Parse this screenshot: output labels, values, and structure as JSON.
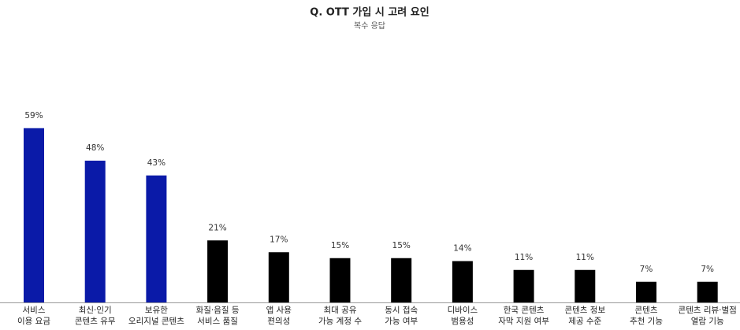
{
  "chart_data": {
    "type": "bar",
    "title": "Q. OTT 가입 시 고려 요인",
    "subtitle": "복수 응답",
    "categories": [
      [
        "서비스",
        "이용 요금"
      ],
      [
        "최신·인기",
        "콘텐츠 유무"
      ],
      [
        "보유한",
        "오리지널 콘텐츠"
      ],
      [
        "화질·음질 등",
        "서비스 품질"
      ],
      [
        "앱 사용",
        "편의성"
      ],
      [
        "최대 공유",
        "가능 계정 수"
      ],
      [
        "동시 접속",
        "가능 여부"
      ],
      [
        "디바이스",
        "범용성"
      ],
      [
        "한국 콘텐츠",
        "자막 지원 여부"
      ],
      [
        "콘텐츠 정보",
        "제공 수준"
      ],
      [
        "콘텐츠",
        "추천 기능"
      ],
      [
        "콘텐츠 리뷰·별점",
        "열람 기능"
      ]
    ],
    "values": [
      59,
      48,
      43,
      21,
      17,
      15,
      15,
      14,
      11,
      11,
      7,
      7
    ],
    "value_labels": [
      "59%",
      "48%",
      "43%",
      "21%",
      "17%",
      "15%",
      "15%",
      "14%",
      "11%",
      "11%",
      "7%",
      "7%"
    ],
    "colors": [
      "#0a1aa8",
      "#0a1aa8",
      "#0a1aa8",
      "#000000",
      "#000000",
      "#000000",
      "#000000",
      "#000000",
      "#000000",
      "#000000",
      "#000000",
      "#000000"
    ]
  }
}
